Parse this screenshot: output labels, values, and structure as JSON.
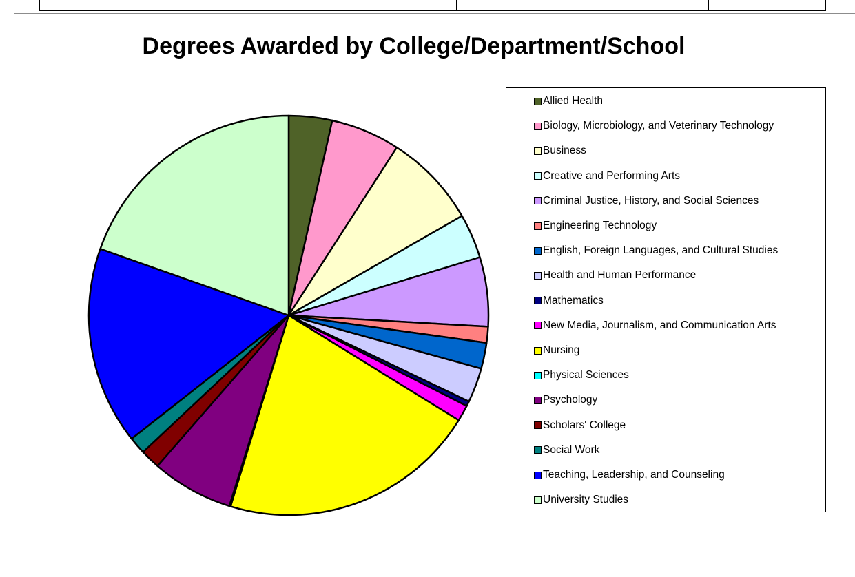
{
  "top_table": {
    "cells": [
      "",
      "",
      ""
    ]
  },
  "chart_data": {
    "type": "pie",
    "title": "Degrees Awarded by College/Department/School",
    "legend_position": "right",
    "slices": [
      {
        "label": "Allied Health",
        "value": 3.5,
        "color": "#4f6228"
      },
      {
        "label": "Biology, Microbiology, and Veterinary Technology",
        "value": 5.6,
        "color": "#ff99cc"
      },
      {
        "label": "Business",
        "value": 7.6,
        "color": "#ffffcc"
      },
      {
        "label": "Creative and Performing Arts",
        "value": 3.6,
        "color": "#ccffff"
      },
      {
        "label": "Criminal Justice, History, and Social Sciences",
        "value": 5.6,
        "color": "#cc99ff"
      },
      {
        "label": "Engineering Technology",
        "value": 1.3,
        "color": "#ff8080"
      },
      {
        "label": "English, Foreign Languages, and Cultural Studies",
        "value": 2.1,
        "color": "#0066cc"
      },
      {
        "label": "Health and Human Performance",
        "value": 2.8,
        "color": "#ccccff"
      },
      {
        "label": "Mathematics",
        "value": 0.4,
        "color": "#000080"
      },
      {
        "label": "New Media, Journalism, and Communication Arts",
        "value": 1.3,
        "color": "#ff00ff"
      },
      {
        "label": "Nursing",
        "value": 20.9,
        "color": "#ffff00"
      },
      {
        "label": "Physical Sciences",
        "value": 0.1,
        "color": "#00ffff"
      },
      {
        "label": "Psychology",
        "value": 6.6,
        "color": "#800080"
      },
      {
        "label": "Scholars' College",
        "value": 1.6,
        "color": "#800000"
      },
      {
        "label": "Social Work",
        "value": 1.4,
        "color": "#008080"
      },
      {
        "label": "Teaching, Leadership, and Counseling",
        "value": 16.0,
        "color": "#0000ff"
      },
      {
        "label": "University Studies",
        "value": 19.6,
        "color": "#ccffcc"
      }
    ]
  }
}
